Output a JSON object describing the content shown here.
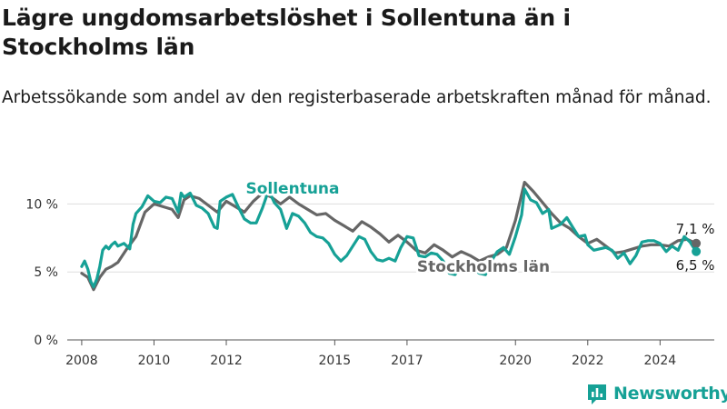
{
  "title": "Lägre ungdomsarbetslöshet i Sollentuna än i Stockholms län",
  "subtitle": "Arbetssökande som andel av den registerbaserade arbetskraften månad för månad.",
  "brand": {
    "name": "Newsworthy",
    "icon": "bar-chart-logo-icon",
    "color": "#16a196"
  },
  "chart_data": {
    "type": "line",
    "x_range": [
      2007.6,
      2025.5
    ],
    "ylim": [
      0,
      12.3
    ],
    "x_ticks": [
      {
        "value": 2008,
        "label": "2008"
      },
      {
        "value": 2010,
        "label": "2010"
      },
      {
        "value": 2012,
        "label": "2012"
      },
      {
        "value": 2015,
        "label": "2015"
      },
      {
        "value": 2017,
        "label": "2017"
      },
      {
        "value": 2020,
        "label": "2020"
      },
      {
        "value": 2022,
        "label": "2022"
      },
      {
        "value": 2024,
        "label": "2024"
      }
    ],
    "y_ticks": [
      {
        "value": 0,
        "label": "0 %"
      },
      {
        "value": 5,
        "label": "5 %"
      },
      {
        "value": 10,
        "label": "10 %"
      }
    ],
    "grid": "horizontal",
    "series": [
      {
        "name": "Stockholms län",
        "color": "#666666",
        "end_label": "7,1 %",
        "points": [
          [
            2008.0,
            4.9
          ],
          [
            2008.17,
            4.6
          ],
          [
            2008.33,
            3.7
          ],
          [
            2008.5,
            4.6
          ],
          [
            2008.67,
            5.2
          ],
          [
            2008.83,
            5.4
          ],
          [
            2009.0,
            5.7
          ],
          [
            2009.25,
            6.7
          ],
          [
            2009.5,
            7.6
          ],
          [
            2009.75,
            9.4
          ],
          [
            2010.0,
            10.0
          ],
          [
            2010.25,
            9.8
          ],
          [
            2010.5,
            9.6
          ],
          [
            2010.67,
            9.0
          ],
          [
            2010.83,
            10.3
          ],
          [
            2011.0,
            10.6
          ],
          [
            2011.25,
            10.4
          ],
          [
            2011.5,
            9.9
          ],
          [
            2011.75,
            9.4
          ],
          [
            2012.0,
            10.2
          ],
          [
            2012.25,
            9.8
          ],
          [
            2012.5,
            9.4
          ],
          [
            2012.75,
            10.2
          ],
          [
            2013.0,
            10.8
          ],
          [
            2013.25,
            10.5
          ],
          [
            2013.5,
            10.0
          ],
          [
            2013.75,
            10.5
          ],
          [
            2014.0,
            10.0
          ],
          [
            2014.25,
            9.6
          ],
          [
            2014.5,
            9.2
          ],
          [
            2014.75,
            9.3
          ],
          [
            2015.0,
            8.8
          ],
          [
            2015.25,
            8.4
          ],
          [
            2015.5,
            8.0
          ],
          [
            2015.75,
            8.7
          ],
          [
            2016.0,
            8.3
          ],
          [
            2016.25,
            7.8
          ],
          [
            2016.5,
            7.2
          ],
          [
            2016.75,
            7.7
          ],
          [
            2017.0,
            7.2
          ],
          [
            2017.25,
            6.6
          ],
          [
            2017.5,
            6.4
          ],
          [
            2017.75,
            7.0
          ],
          [
            2018.0,
            6.6
          ],
          [
            2018.25,
            6.1
          ],
          [
            2018.5,
            6.5
          ],
          [
            2018.75,
            6.2
          ],
          [
            2019.0,
            5.8
          ],
          [
            2019.25,
            6.1
          ],
          [
            2019.5,
            6.3
          ],
          [
            2019.75,
            6.8
          ],
          [
            2020.0,
            8.8
          ],
          [
            2020.25,
            11.6
          ],
          [
            2020.5,
            10.9
          ],
          [
            2020.75,
            10.1
          ],
          [
            2021.0,
            9.3
          ],
          [
            2021.25,
            8.6
          ],
          [
            2021.5,
            8.2
          ],
          [
            2021.75,
            7.6
          ],
          [
            2022.0,
            7.1
          ],
          [
            2022.25,
            7.4
          ],
          [
            2022.5,
            6.9
          ],
          [
            2022.75,
            6.4
          ],
          [
            2023.0,
            6.5
          ],
          [
            2023.25,
            6.7
          ],
          [
            2023.5,
            6.9
          ],
          [
            2023.75,
            7.0
          ],
          [
            2024.0,
            7.0
          ],
          [
            2024.25,
            6.9
          ],
          [
            2024.5,
            7.3
          ],
          [
            2024.75,
            7.4
          ],
          [
            2025.0,
            7.1
          ]
        ]
      },
      {
        "name": "Sollentuna",
        "color": "#16a196",
        "end_label": "6,5 %",
        "points": [
          [
            2008.0,
            5.4
          ],
          [
            2008.08,
            5.8
          ],
          [
            2008.17,
            5.2
          ],
          [
            2008.25,
            4.3
          ],
          [
            2008.33,
            3.9
          ],
          [
            2008.42,
            4.5
          ],
          [
            2008.5,
            5.4
          ],
          [
            2008.58,
            6.6
          ],
          [
            2008.67,
            6.9
          ],
          [
            2008.75,
            6.7
          ],
          [
            2008.83,
            7.0
          ],
          [
            2008.92,
            7.2
          ],
          [
            2009.0,
            6.9
          ],
          [
            2009.17,
            7.1
          ],
          [
            2009.33,
            6.7
          ],
          [
            2009.42,
            8.5
          ],
          [
            2009.5,
            9.3
          ],
          [
            2009.67,
            9.8
          ],
          [
            2009.83,
            10.6
          ],
          [
            2010.0,
            10.2
          ],
          [
            2010.17,
            10.1
          ],
          [
            2010.33,
            10.5
          ],
          [
            2010.5,
            10.4
          ],
          [
            2010.67,
            9.4
          ],
          [
            2010.75,
            10.8
          ],
          [
            2010.83,
            10.5
          ],
          [
            2011.0,
            10.8
          ],
          [
            2011.17,
            9.9
          ],
          [
            2011.33,
            9.7
          ],
          [
            2011.5,
            9.3
          ],
          [
            2011.67,
            8.3
          ],
          [
            2011.75,
            8.2
          ],
          [
            2011.83,
            10.2
          ],
          [
            2012.0,
            10.5
          ],
          [
            2012.17,
            10.7
          ],
          [
            2012.33,
            9.8
          ],
          [
            2012.5,
            8.9
          ],
          [
            2012.67,
            8.6
          ],
          [
            2012.83,
            8.6
          ],
          [
            2013.0,
            9.7
          ],
          [
            2013.17,
            11.0
          ],
          [
            2013.33,
            10.1
          ],
          [
            2013.5,
            9.6
          ],
          [
            2013.67,
            8.2
          ],
          [
            2013.83,
            9.3
          ],
          [
            2014.0,
            9.1
          ],
          [
            2014.17,
            8.6
          ],
          [
            2014.33,
            7.9
          ],
          [
            2014.5,
            7.6
          ],
          [
            2014.67,
            7.5
          ],
          [
            2014.83,
            7.1
          ],
          [
            2015.0,
            6.3
          ],
          [
            2015.17,
            5.8
          ],
          [
            2015.33,
            6.2
          ],
          [
            2015.5,
            6.9
          ],
          [
            2015.67,
            7.6
          ],
          [
            2015.83,
            7.4
          ],
          [
            2016.0,
            6.5
          ],
          [
            2016.17,
            5.9
          ],
          [
            2016.33,
            5.8
          ],
          [
            2016.5,
            6.0
          ],
          [
            2016.67,
            5.8
          ],
          [
            2016.83,
            6.8
          ],
          [
            2017.0,
            7.6
          ],
          [
            2017.17,
            7.5
          ],
          [
            2017.33,
            6.2
          ],
          [
            2017.5,
            6.1
          ],
          [
            2017.67,
            6.4
          ],
          [
            2017.83,
            6.3
          ],
          [
            2018.0,
            5.8
          ],
          [
            2018.17,
            4.9
          ],
          [
            2018.33,
            4.8
          ],
          [
            2018.5,
            5.4
          ],
          [
            2018.67,
            5.3
          ],
          [
            2018.83,
            5.2
          ],
          [
            2019.0,
            4.9
          ],
          [
            2019.17,
            4.8
          ],
          [
            2019.33,
            5.8
          ],
          [
            2019.5,
            6.5
          ],
          [
            2019.67,
            6.8
          ],
          [
            2019.83,
            6.3
          ],
          [
            2020.0,
            7.6
          ],
          [
            2020.17,
            9.2
          ],
          [
            2020.25,
            11.1
          ],
          [
            2020.42,
            10.3
          ],
          [
            2020.58,
            10.1
          ],
          [
            2020.75,
            9.3
          ],
          [
            2020.92,
            9.6
          ],
          [
            2021.0,
            8.2
          ],
          [
            2021.25,
            8.5
          ],
          [
            2021.42,
            9.0
          ],
          [
            2021.58,
            8.3
          ],
          [
            2021.75,
            7.6
          ],
          [
            2021.92,
            7.7
          ],
          [
            2022.0,
            7.0
          ],
          [
            2022.17,
            6.6
          ],
          [
            2022.33,
            6.7
          ],
          [
            2022.5,
            6.8
          ],
          [
            2022.67,
            6.6
          ],
          [
            2022.83,
            6.0
          ],
          [
            2023.0,
            6.4
          ],
          [
            2023.17,
            5.6
          ],
          [
            2023.33,
            6.2
          ],
          [
            2023.5,
            7.2
          ],
          [
            2023.67,
            7.3
          ],
          [
            2023.83,
            7.3
          ],
          [
            2024.0,
            7.1
          ],
          [
            2024.17,
            6.5
          ],
          [
            2024.33,
            6.9
          ],
          [
            2024.5,
            6.6
          ],
          [
            2024.67,
            7.6
          ],
          [
            2024.83,
            7.2
          ],
          [
            2025.0,
            6.5
          ]
        ]
      }
    ]
  }
}
